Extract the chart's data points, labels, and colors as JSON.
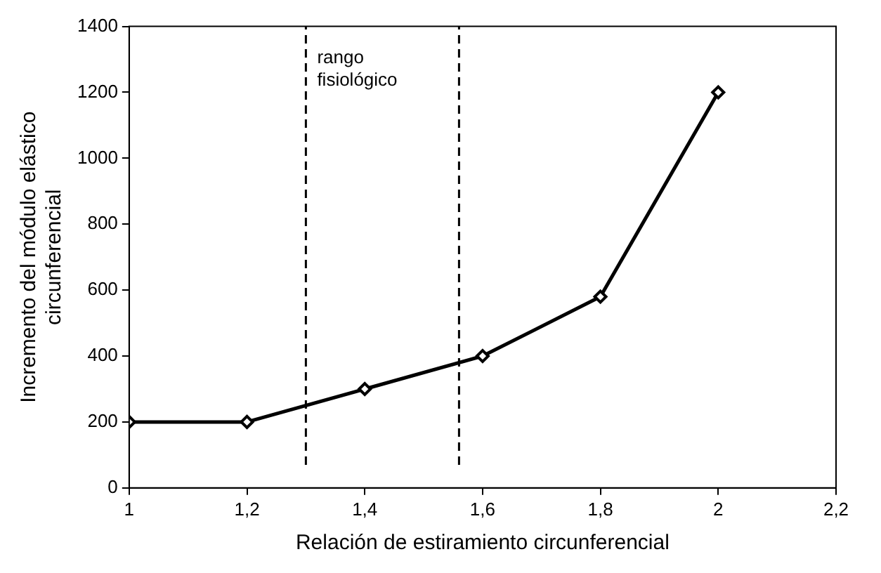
{
  "chart_data": {
    "type": "line",
    "xlabel": "Relación de estiramiento circunferencial",
    "ylabel": "Incremento del módulo elástico\ncircunferencial",
    "x": [
      1,
      1.2,
      1.4,
      1.6,
      1.8,
      2
    ],
    "series": [
      {
        "color": "#000000",
        "values": [
          200,
          200,
          300,
          400,
          580,
          1200
        ]
      }
    ],
    "xlim": [
      1,
      2.2
    ],
    "xticks": [
      1,
      {
        "value": 1.2,
        "label": "1,2"
      },
      {
        "value": 1.4,
        "label": "1,4"
      },
      {
        "value": 1.6,
        "label": "1,6"
      },
      {
        "value": 1.8,
        "label": "1,8"
      },
      2,
      {
        "value": 2.2,
        "label": "2,2"
      }
    ],
    "ylim": [
      0,
      1400
    ],
    "yticks": [
      0,
      200,
      400,
      600,
      800,
      1000,
      1200,
      1400
    ],
    "ref_lines": [
      {
        "axis": "x",
        "value": 1.3,
        "line_style": "dashed",
        "color": "#000000"
      },
      {
        "axis": "x",
        "value": 1.56,
        "line_style": "dashed",
        "color": "#000000"
      }
    ],
    "annotations": [
      "rango\nfisiológico"
    ],
    "marker": "diamond",
    "line_style": "solid",
    "grid": false,
    "legend": false
  }
}
